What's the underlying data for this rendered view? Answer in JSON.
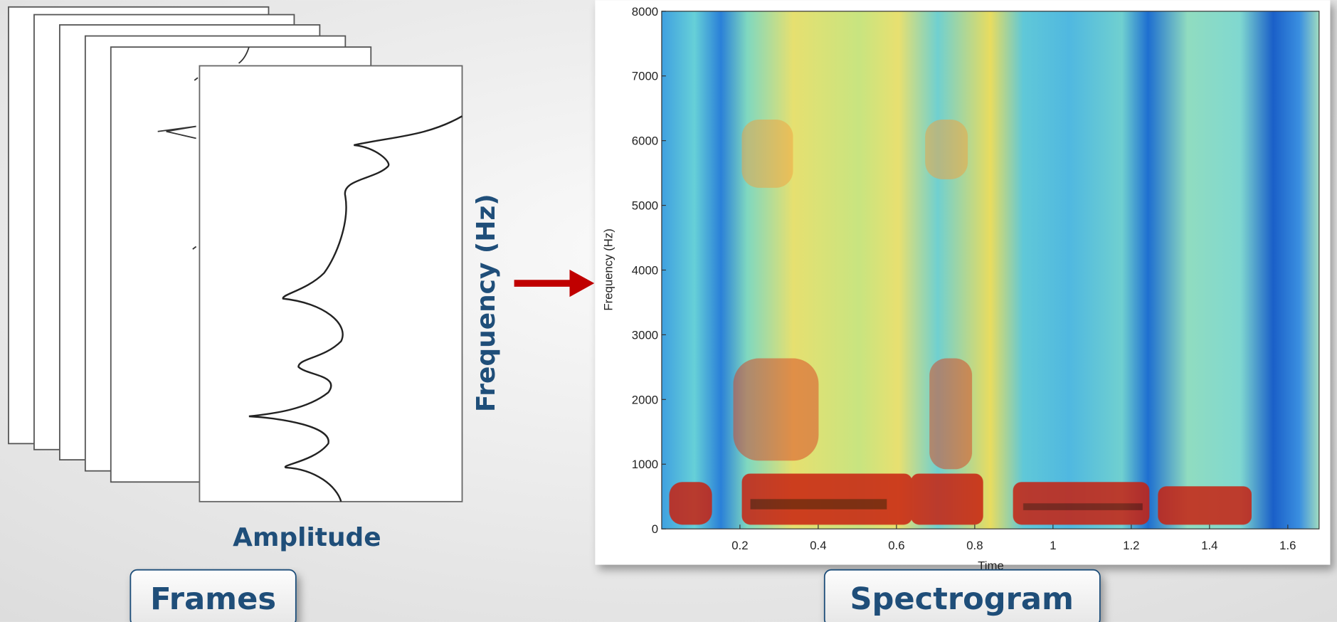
{
  "frames": {
    "x_label": "Amplitude",
    "y_label": "Frequency (Hz)",
    "caption": "Frames"
  },
  "spectrogram": {
    "caption": "Spectrogram",
    "y_label": "Frequency (Hz)",
    "x_label": "Time",
    "ylim": [
      0,
      8000
    ],
    "yticks": [
      0,
      1000,
      2000,
      3000,
      4000,
      5000,
      6000,
      7000,
      8000
    ],
    "xlim": [
      0,
      1.68
    ],
    "xticks": [
      0.2,
      0.4,
      0.6,
      0.8,
      1,
      1.2,
      1.4,
      1.6
    ]
  }
}
